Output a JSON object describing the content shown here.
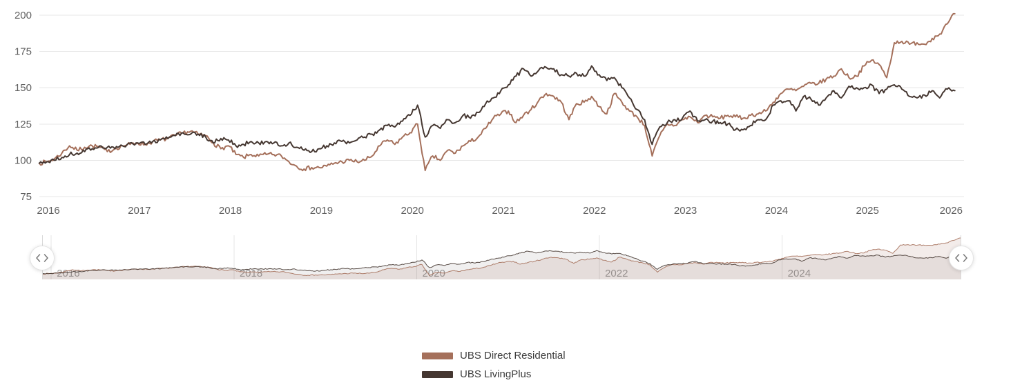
{
  "legend": {
    "items": [
      {
        "label": "UBS Direct Residential",
        "color": "#a5705b"
      },
      {
        "label": "UBS LivingPlus",
        "color": "#453731"
      }
    ]
  },
  "navigator": {
    "left_handle_icon": "chevrons-left-right",
    "right_handle_icon": "chevrons-left-right",
    "tick_labels": [
      "2016",
      "2018",
      "2020",
      "2022",
      "2024"
    ]
  },
  "colors": {
    "grid": "#e7e7e7",
    "nav_grid": "#e4e4e4",
    "axis_label": "#606060",
    "nav_label": "#9e9e9e",
    "nav_fill_direct": "rgba(165,112,91,0.13)",
    "nav_fill_living": "rgba(69,55,49,0.08)",
    "handle_line": "#d9d9d9",
    "background": "#ffffff"
  },
  "chart_data": {
    "type": "line",
    "title": "",
    "xlabel": "",
    "ylabel": "",
    "grid": "horizontal",
    "legend_position": "bottom-center",
    "xlim": [
      2015.9,
      2025.96
    ],
    "ylim": [
      75,
      200
    ],
    "y_ticks": [
      200,
      175,
      150,
      125,
      100,
      75
    ],
    "x_ticks": [
      2016,
      2017,
      2018,
      2019,
      2020,
      2021,
      2022,
      2023,
      2024,
      2025,
      2026
    ],
    "navigator_ticks": [
      2016,
      2018,
      2020,
      2022,
      2024
    ],
    "x_sampling": "monthly values from 2016-01 to 2025-12 plus lead-in and final points, indexed values start at 2015.9",
    "series": [
      {
        "name": "UBS Direct Residential",
        "color": "#a5705b",
        "start_value_2016": 100,
        "values": [
          98,
          99,
          101,
          105,
          110,
          107,
          109,
          110,
          109,
          106,
          108,
          110,
          111,
          112,
          111,
          113,
          114,
          115,
          117,
          119,
          120,
          118,
          117,
          112,
          108,
          110,
          104,
          102,
          104,
          103,
          104,
          104,
          103,
          99,
          96,
          94,
          95,
          95,
          96,
          98,
          99,
          100,
          99,
          100,
          103,
          110,
          114,
          111,
          116,
          119,
          125,
          93,
          103,
          100,
          107,
          105,
          110,
          113,
          116,
          122,
          129,
          132,
          134,
          126,
          131,
          135,
          141,
          146,
          144,
          140,
          128,
          139,
          140,
          144,
          137,
          132,
          146,
          140,
          134,
          130,
          124,
          103,
          117,
          125,
          124,
          128,
          130,
          126,
          131,
          130,
          129,
          131,
          130,
          129,
          131,
          132,
          134,
          140,
          146,
          149,
          148,
          151,
          153,
          153,
          156,
          158,
          163,
          157,
          158,
          165,
          169,
          166,
          157,
          181,
          182,
          180,
          181,
          180,
          184,
          187,
          194,
          201
        ]
      },
      {
        "name": "UBS LivingPlus",
        "color": "#453731",
        "start_value_2016": 100,
        "values": [
          98,
          99,
          100,
          102,
          104,
          105,
          106,
          108,
          110,
          109,
          108,
          110,
          112,
          112,
          111,
          113,
          114,
          115,
          117,
          119,
          118,
          118,
          116,
          112,
          115,
          114,
          110,
          111,
          113,
          112,
          113,
          112,
          110,
          112,
          109,
          107,
          106,
          108,
          110,
          112,
          113,
          112,
          114,
          116,
          118,
          121,
          124,
          123,
          127,
          131,
          138,
          116,
          124,
          122,
          128,
          126,
          131,
          129,
          133,
          139,
          143,
          148,
          152,
          158,
          163,
          158,
          162,
          164,
          163,
          159,
          158,
          160,
          158,
          165,
          159,
          155,
          157,
          150,
          143,
          135,
          128,
          111,
          123,
          126,
          128,
          129,
          134,
          127,
          128,
          127,
          126,
          125,
          121,
          121,
          124,
          128,
          128,
          138,
          141,
          141,
          134,
          144,
          142,
          138,
          143,
          148,
          143,
          151,
          150,
          150,
          152,
          146,
          149,
          152,
          149,
          144,
          143,
          145,
          148,
          143,
          149,
          148
        ]
      }
    ]
  }
}
